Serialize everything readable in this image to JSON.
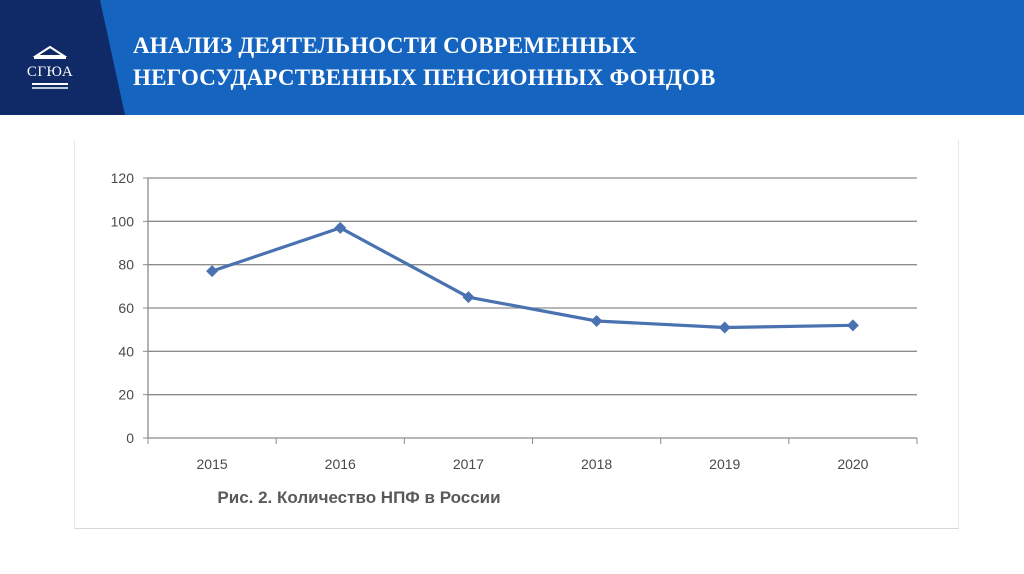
{
  "header": {
    "logo_text": "СГЮА",
    "title_line1": "АНАЛИЗ ДЕЯТЕЛЬНОСТИ СОВРЕМЕННЫХ",
    "title_line2": "НЕГОСУДАРСТВЕННЫХ ПЕНСИОННЫХ ФОНДОВ",
    "colors": {
      "band": "#1565c0",
      "logo_block": "#0f2a66",
      "text": "#ffffff"
    }
  },
  "chart_data": {
    "type": "line",
    "title": "Рис. 2. Количество НПФ в России",
    "xlabel": "",
    "ylabel": "",
    "categories": [
      "2015",
      "2016",
      "2017",
      "2018",
      "2019",
      "2020"
    ],
    "series": [
      {
        "values": [
          77,
          97,
          65,
          54,
          51,
          52
        ],
        "color": "#4a72b0",
        "marker": "diamond"
      }
    ],
    "ylim": [
      0,
      120
    ],
    "yticks": [
      "0",
      "20",
      "40",
      "60",
      "80",
      "100",
      "120"
    ],
    "grid": true,
    "legend": "none"
  }
}
